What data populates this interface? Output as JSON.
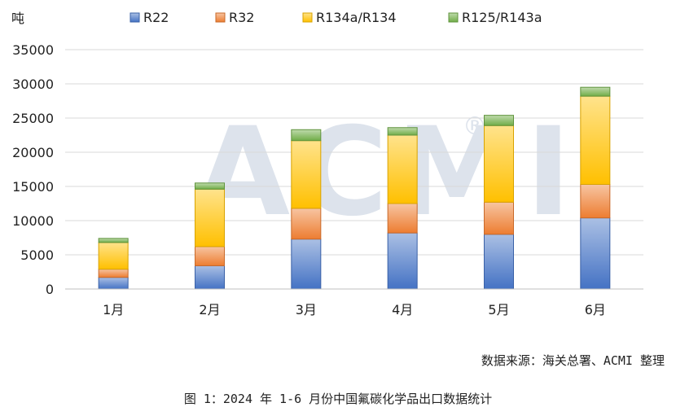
{
  "chart_data": {
    "type": "bar",
    "stacked": true,
    "categories": [
      "1月",
      "2月",
      "3月",
      "4月",
      "5月",
      "6月"
    ],
    "series": [
      {
        "name": "R22",
        "color": "#4472C4",
        "values": [
          1700,
          3400,
          7300,
          8200,
          8000,
          10400
        ]
      },
      {
        "name": "R32",
        "color": "#ED7D31",
        "values": [
          1200,
          2800,
          4500,
          4300,
          4700,
          4900
        ]
      },
      {
        "name": "R134a/R134",
        "color": "#FFC000",
        "values": [
          3900,
          8400,
          9900,
          10000,
          11200,
          12900
        ]
      },
      {
        "name": "R125/R143a",
        "color": "#70AD47",
        "values": [
          600,
          900,
          1600,
          1100,
          1500,
          1300
        ]
      }
    ],
    "ylabel": "吨",
    "ylim": [
      0,
      35000
    ],
    "yticks": [
      0,
      5000,
      10000,
      15000,
      20000,
      25000,
      30000,
      35000
    ],
    "grid": true,
    "legend_position": "top"
  },
  "watermark": {
    "text": "ACMI",
    "mark": "®"
  },
  "source_note": "数据来源：海关总署、ACMI 整理",
  "caption": "图 1：2024 年 1-6 月份中国氟碳化学品出口数据统计"
}
